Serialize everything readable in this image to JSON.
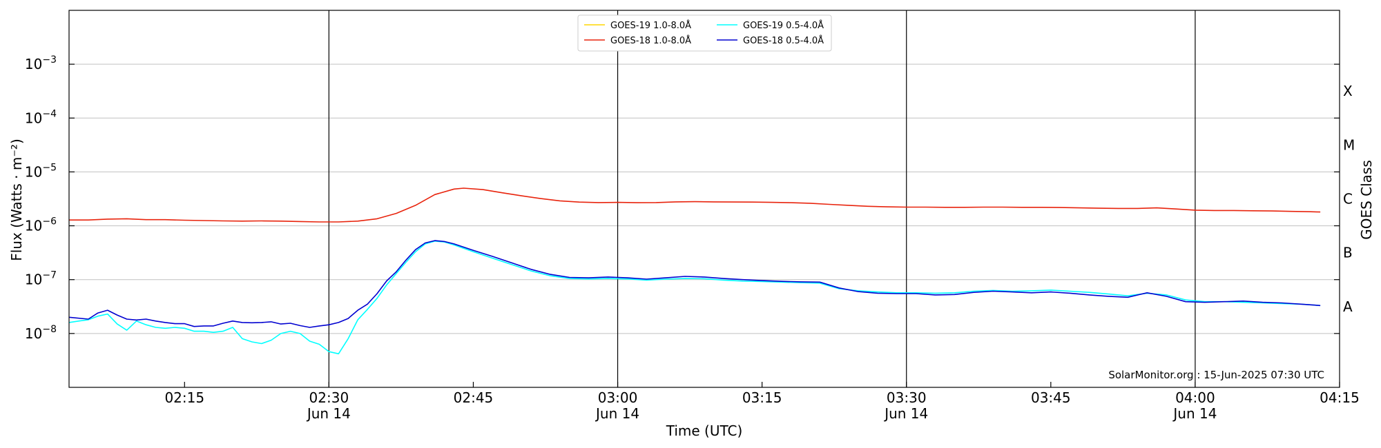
{
  "chart_data": {
    "type": "line",
    "title": "",
    "xlabel": "Time (UTC)",
    "ylabel": "Flux (Watts · m⁻²)",
    "right_axis_label": "GOES Class",
    "yscale": "log",
    "xlim": [
      "02:03",
      "04:15"
    ],
    "ylim": [
      1e-09,
      0.01
    ],
    "grid": "horizontal",
    "legend_position": "top-center",
    "credit": "SolarMonitor.org : 15-Jun-2025 07:30 UTC",
    "x_ticks": [
      {
        "label": "02:15",
        "sublabel": ""
      },
      {
        "label": "02:30",
        "sublabel": "Jun 14"
      },
      {
        "label": "02:45",
        "sublabel": ""
      },
      {
        "label": "03:00",
        "sublabel": "Jun 14"
      },
      {
        "label": "03:15",
        "sublabel": ""
      },
      {
        "label": "03:30",
        "sublabel": "Jun 14"
      },
      {
        "label": "03:45",
        "sublabel": ""
      },
      {
        "label": "04:00",
        "sublabel": "Jun 14"
      },
      {
        "label": "04:15",
        "sublabel": ""
      }
    ],
    "day_markers": [
      "02:30",
      "03:00",
      "03:30",
      "04:00"
    ],
    "y_ticks": [
      {
        "base": "10",
        "exp": "−8",
        "value": 1e-08
      },
      {
        "base": "10",
        "exp": "−7",
        "value": 1e-07
      },
      {
        "base": "10",
        "exp": "−6",
        "value": 1e-06
      },
      {
        "base": "10",
        "exp": "−5",
        "value": 1e-05
      },
      {
        "base": "10",
        "exp": "−4",
        "value": 0.0001
      },
      {
        "base": "10",
        "exp": "−3",
        "value": 0.001
      }
    ],
    "class_labels": [
      {
        "label": "A",
        "value": 3.16e-08
      },
      {
        "label": "B",
        "value": 3.16e-07
      },
      {
        "label": "C",
        "value": 3.16e-06
      },
      {
        "label": "M",
        "value": 3.16e-05
      },
      {
        "label": "X",
        "value": 0.000316
      }
    ],
    "legend": [
      {
        "name": "GOES-19 1.0-8.0Å",
        "color": "#ffd700"
      },
      {
        "name": "GOES-18 1.0-8.0Å",
        "color": "#e8230c"
      },
      {
        "name": "GOES-19 0.5-4.0Å",
        "color": "#00ffff"
      },
      {
        "name": "GOES-18 0.5-4.0Å",
        "color": "#0000d0"
      }
    ],
    "series": [
      {
        "name": "GOES-18 1.0-8.0Å",
        "color": "#e8230c",
        "points": [
          [
            "02:03",
            1.28e-06
          ],
          [
            "02:05",
            1.28e-06
          ],
          [
            "02:07",
            1.33e-06
          ],
          [
            "02:09",
            1.35e-06
          ],
          [
            "02:11",
            1.3e-06
          ],
          [
            "02:13",
            1.3e-06
          ],
          [
            "02:15",
            1.27e-06
          ],
          [
            "02:17",
            1.25e-06
          ],
          [
            "02:19",
            1.23e-06
          ],
          [
            "02:21",
            1.22e-06
          ],
          [
            "02:23",
            1.23e-06
          ],
          [
            "02:25",
            1.22e-06
          ],
          [
            "02:27",
            1.2e-06
          ],
          [
            "02:29",
            1.18e-06
          ],
          [
            "02:31",
            1.18e-06
          ],
          [
            "02:33",
            1.22e-06
          ],
          [
            "02:35",
            1.35e-06
          ],
          [
            "02:37",
            1.7e-06
          ],
          [
            "02:39",
            2.4e-06
          ],
          [
            "02:41",
            3.8e-06
          ],
          [
            "02:43",
            4.8e-06
          ],
          [
            "02:44",
            5e-06
          ],
          [
            "02:46",
            4.7e-06
          ],
          [
            "02:48",
            4.1e-06
          ],
          [
            "02:50",
            3.6e-06
          ],
          [
            "02:52",
            3.2e-06
          ],
          [
            "02:54",
            2.9e-06
          ],
          [
            "02:56",
            2.75e-06
          ],
          [
            "02:58",
            2.7e-06
          ],
          [
            "03:00",
            2.72e-06
          ],
          [
            "03:02",
            2.68e-06
          ],
          [
            "03:04",
            2.7e-06
          ],
          [
            "03:06",
            2.78e-06
          ],
          [
            "03:08",
            2.8e-06
          ],
          [
            "03:10",
            2.78e-06
          ],
          [
            "03:12",
            2.76e-06
          ],
          [
            "03:14",
            2.75e-06
          ],
          [
            "03:16",
            2.72e-06
          ],
          [
            "03:18",
            2.68e-06
          ],
          [
            "03:20",
            2.62e-06
          ],
          [
            "03:22",
            2.5e-06
          ],
          [
            "03:24",
            2.4e-06
          ],
          [
            "03:26",
            2.3e-06
          ],
          [
            "03:28",
            2.25e-06
          ],
          [
            "03:30",
            2.22e-06
          ],
          [
            "03:32",
            2.22e-06
          ],
          [
            "03:34",
            2.2e-06
          ],
          [
            "03:36",
            2.2e-06
          ],
          [
            "03:38",
            2.22e-06
          ],
          [
            "03:40",
            2.22e-06
          ],
          [
            "03:42",
            2.2e-06
          ],
          [
            "03:44",
            2.2e-06
          ],
          [
            "03:46",
            2.18e-06
          ],
          [
            "03:48",
            2.15e-06
          ],
          [
            "03:50",
            2.12e-06
          ],
          [
            "03:52",
            2.1e-06
          ],
          [
            "03:54",
            2.1e-06
          ],
          [
            "03:56",
            2.15e-06
          ],
          [
            "03:58",
            2.05e-06
          ],
          [
            "04:00",
            1.95e-06
          ],
          [
            "04:02",
            1.92e-06
          ],
          [
            "04:04",
            1.92e-06
          ],
          [
            "04:06",
            1.9e-06
          ],
          [
            "04:08",
            1.88e-06
          ],
          [
            "04:10",
            1.85e-06
          ],
          [
            "04:12",
            1.82e-06
          ],
          [
            "04:13",
            1.8e-06
          ]
        ]
      },
      {
        "name": "GOES-19 0.5-4.0Å",
        "color": "#00ffff",
        "points": [
          [
            "02:03",
            1.6e-08
          ],
          [
            "02:04",
            1.7e-08
          ],
          [
            "02:05",
            1.8e-08
          ],
          [
            "02:06",
            2.1e-08
          ],
          [
            "02:07",
            2.3e-08
          ],
          [
            "02:08",
            1.5e-08
          ],
          [
            "02:09",
            1.15e-08
          ],
          [
            "02:10",
            1.7e-08
          ],
          [
            "02:11",
            1.45e-08
          ],
          [
            "02:12",
            1.3e-08
          ],
          [
            "02:13",
            1.25e-08
          ],
          [
            "02:14",
            1.3e-08
          ],
          [
            "02:15",
            1.25e-08
          ],
          [
            "02:16",
            1.1e-08
          ],
          [
            "02:17",
            1.1e-08
          ],
          [
            "02:18",
            1.05e-08
          ],
          [
            "02:19",
            1.1e-08
          ],
          [
            "02:20",
            1.3e-08
          ],
          [
            "02:21",
            8e-09
          ],
          [
            "02:22",
            7e-09
          ],
          [
            "02:23",
            6.5e-09
          ],
          [
            "02:24",
            7.5e-09
          ],
          [
            "02:25",
            1e-08
          ],
          [
            "02:26",
            1.1e-08
          ],
          [
            "02:27",
            1e-08
          ],
          [
            "02:28",
            7.2e-09
          ],
          [
            "02:29",
            6.3e-09
          ],
          [
            "02:30",
            4.6e-09
          ],
          [
            "02:31",
            4.2e-09
          ],
          [
            "02:32",
            8e-09
          ],
          [
            "02:33",
            1.8e-08
          ],
          [
            "02:34",
            2.8e-08
          ],
          [
            "02:35",
            4.5e-08
          ],
          [
            "02:36",
            8e-08
          ],
          [
            "02:37",
            1.3e-07
          ],
          [
            "02:38",
            2.1e-07
          ],
          [
            "02:39",
            3.3e-07
          ],
          [
            "02:40",
            4.6e-07
          ],
          [
            "02:41",
            5.2e-07
          ],
          [
            "02:42",
            5e-07
          ],
          [
            "02:43",
            4.4e-07
          ],
          [
            "02:45",
            3.3e-07
          ],
          [
            "02:47",
            2.5e-07
          ],
          [
            "02:49",
            1.9e-07
          ],
          [
            "02:51",
            1.45e-07
          ],
          [
            "02:53",
            1.18e-07
          ],
          [
            "02:55",
            1.05e-07
          ],
          [
            "02:57",
            1.03e-07
          ],
          [
            "02:59",
            1.05e-07
          ],
          [
            "03:01",
            1.03e-07
          ],
          [
            "03:03",
            9.8e-08
          ],
          [
            "03:05",
            1.02e-07
          ],
          [
            "03:07",
            1.05e-07
          ],
          [
            "03:09",
            1.04e-07
          ],
          [
            "03:11",
            9.8e-08
          ],
          [
            "03:13",
            9.4e-08
          ],
          [
            "03:15",
            9.2e-08
          ],
          [
            "03:17",
            9e-08
          ],
          [
            "03:19",
            8.8e-08
          ],
          [
            "03:21",
            8.6e-08
          ],
          [
            "03:23",
            6.8e-08
          ],
          [
            "03:25",
            6.2e-08
          ],
          [
            "03:27",
            5.9e-08
          ],
          [
            "03:29",
            5.7e-08
          ],
          [
            "03:31",
            5.7e-08
          ],
          [
            "03:33",
            5.6e-08
          ],
          [
            "03:35",
            5.7e-08
          ],
          [
            "03:37",
            6.1e-08
          ],
          [
            "03:39",
            6.3e-08
          ],
          [
            "03:41",
            6.1e-08
          ],
          [
            "03:43",
            6.2e-08
          ],
          [
            "03:45",
            6.4e-08
          ],
          [
            "03:47",
            6.1e-08
          ],
          [
            "03:49",
            5.8e-08
          ],
          [
            "03:51",
            5.4e-08
          ],
          [
            "03:53",
            5e-08
          ],
          [
            "03:55",
            5.6e-08
          ],
          [
            "03:57",
            5.2e-08
          ],
          [
            "03:59",
            4.2e-08
          ],
          [
            "04:01",
            3.9e-08
          ],
          [
            "04:03",
            3.9e-08
          ],
          [
            "04:05",
            3.8e-08
          ],
          [
            "04:07",
            3.7e-08
          ],
          [
            "04:09",
            3.6e-08
          ],
          [
            "04:11",
            3.5e-08
          ],
          [
            "04:13",
            3.3e-08
          ]
        ]
      },
      {
        "name": "GOES-18 0.5-4.0Å",
        "color": "#0000d0",
        "points": [
          [
            "02:03",
            2e-08
          ],
          [
            "02:05",
            1.85e-08
          ],
          [
            "02:06",
            2.4e-08
          ],
          [
            "02:07",
            2.7e-08
          ],
          [
            "02:08",
            2.2e-08
          ],
          [
            "02:09",
            1.85e-08
          ],
          [
            "02:10",
            1.78e-08
          ],
          [
            "02:11",
            1.85e-08
          ],
          [
            "02:12",
            1.7e-08
          ],
          [
            "02:13",
            1.6e-08
          ],
          [
            "02:14",
            1.52e-08
          ],
          [
            "02:15",
            1.52e-08
          ],
          [
            "02:16",
            1.35e-08
          ],
          [
            "02:17",
            1.38e-08
          ],
          [
            "02:18",
            1.38e-08
          ],
          [
            "02:19",
            1.55e-08
          ],
          [
            "02:20",
            1.7e-08
          ],
          [
            "02:21",
            1.6e-08
          ],
          [
            "02:22",
            1.58e-08
          ],
          [
            "02:23",
            1.6e-08
          ],
          [
            "02:24",
            1.65e-08
          ],
          [
            "02:25",
            1.5e-08
          ],
          [
            "02:26",
            1.55e-08
          ],
          [
            "02:27",
            1.4e-08
          ],
          [
            "02:28",
            1.3e-08
          ],
          [
            "02:29",
            1.38e-08
          ],
          [
            "02:30",
            1.45e-08
          ],
          [
            "02:31",
            1.6e-08
          ],
          [
            "02:32",
            1.9e-08
          ],
          [
            "02:33",
            2.7e-08
          ],
          [
            "02:34",
            3.5e-08
          ],
          [
            "02:35",
            5.5e-08
          ],
          [
            "02:36",
            9.5e-08
          ],
          [
            "02:37",
            1.4e-07
          ],
          [
            "02:38",
            2.3e-07
          ],
          [
            "02:39",
            3.6e-07
          ],
          [
            "02:40",
            4.8e-07
          ],
          [
            "02:41",
            5.3e-07
          ],
          [
            "02:42",
            5.1e-07
          ],
          [
            "02:43",
            4.6e-07
          ],
          [
            "02:45",
            3.5e-07
          ],
          [
            "02:47",
            2.7e-07
          ],
          [
            "02:49",
            2.05e-07
          ],
          [
            "02:51",
            1.55e-07
          ],
          [
            "02:53",
            1.25e-07
          ],
          [
            "02:55",
            1.1e-07
          ],
          [
            "02:57",
            1.08e-07
          ],
          [
            "02:59",
            1.12e-07
          ],
          [
            "03:01",
            1.08e-07
          ],
          [
            "03:03",
            1.02e-07
          ],
          [
            "03:05",
            1.08e-07
          ],
          [
            "03:07",
            1.15e-07
          ],
          [
            "03:09",
            1.12e-07
          ],
          [
            "03:11",
            1.05e-07
          ],
          [
            "03:13",
            1e-07
          ],
          [
            "03:15",
            9.6e-08
          ],
          [
            "03:17",
            9.3e-08
          ],
          [
            "03:19",
            9.1e-08
          ],
          [
            "03:21",
            9e-08
          ],
          [
            "03:23",
            7e-08
          ],
          [
            "03:25",
            6e-08
          ],
          [
            "03:27",
            5.6e-08
          ],
          [
            "03:29",
            5.5e-08
          ],
          [
            "03:31",
            5.5e-08
          ],
          [
            "03:33",
            5.2e-08
          ],
          [
            "03:35",
            5.3e-08
          ],
          [
            "03:37",
            5.8e-08
          ],
          [
            "03:39",
            6.1e-08
          ],
          [
            "03:41",
            5.9e-08
          ],
          [
            "03:43",
            5.7e-08
          ],
          [
            "03:45",
            5.9e-08
          ],
          [
            "03:47",
            5.6e-08
          ],
          [
            "03:49",
            5.2e-08
          ],
          [
            "03:51",
            4.9e-08
          ],
          [
            "03:53",
            4.7e-08
          ],
          [
            "03:55",
            5.7e-08
          ],
          [
            "03:57",
            4.9e-08
          ],
          [
            "03:59",
            3.9e-08
          ],
          [
            "04:01",
            3.8e-08
          ],
          [
            "04:03",
            3.9e-08
          ],
          [
            "04:05",
            4e-08
          ],
          [
            "04:07",
            3.8e-08
          ],
          [
            "04:09",
            3.7e-08
          ],
          [
            "04:11",
            3.5e-08
          ],
          [
            "04:13",
            3.3e-08
          ]
        ]
      }
    ]
  }
}
